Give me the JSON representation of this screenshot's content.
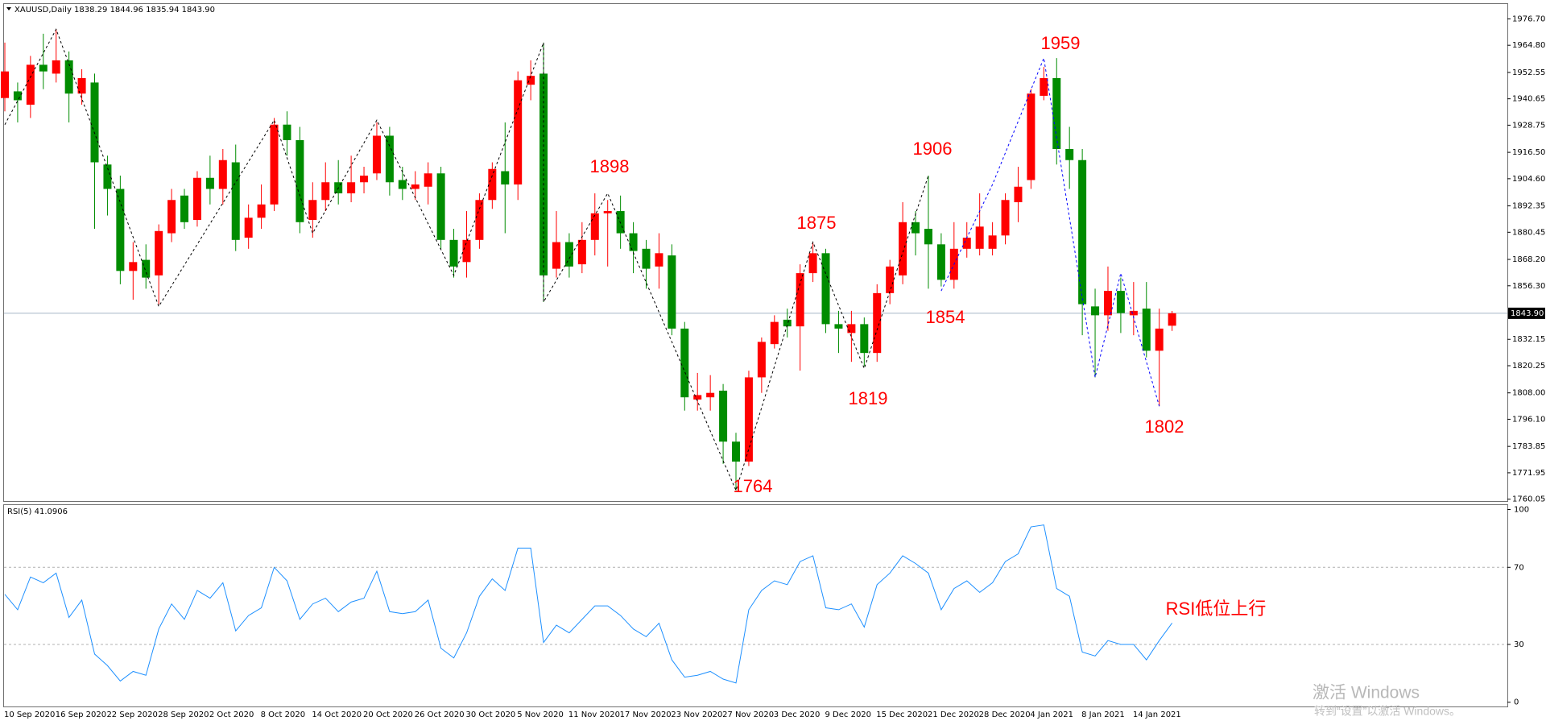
{
  "chart_data": [
    {
      "type": "candlestick",
      "title": "XAUUSD,Daily 1838.29 1844.96 1835.94 1843.90",
      "categories": [
        "10 Sep 2020",
        null,
        null,
        null,
        "16 Sep 2020",
        null,
        null,
        null,
        "22 Sep 2020",
        null,
        null,
        null,
        "28 Sep 2020",
        null,
        null,
        null,
        "2 Oct 2020",
        null,
        null,
        null,
        "8 Oct 2020",
        null,
        null,
        null,
        "14 Oct 2020",
        null,
        null,
        null,
        "20 Oct 2020",
        null,
        null,
        null,
        "26 Oct 2020",
        null,
        null,
        null,
        "30 Oct 2020",
        null,
        null,
        null,
        "5 Nov 2020",
        null,
        null,
        null,
        "11 Nov 2020",
        null,
        null,
        null,
        "17 Nov 2020",
        null,
        null,
        null,
        "23 Nov 2020",
        null,
        null,
        null,
        "27 Nov 2020",
        null,
        null,
        null,
        "3 Dec 2020",
        null,
        null,
        null,
        "9 Dec 2020",
        null,
        null,
        null,
        "15 Dec 2020",
        null,
        null,
        null,
        "21 Dec 2020",
        null,
        null,
        null,
        "28 Dec 2020",
        null,
        null,
        null,
        "4 Jan 2021",
        null,
        null,
        null,
        "8 Jan 2021",
        null,
        null,
        null,
        "14 Jan 2021",
        null,
        null,
        null
      ],
      "open": [
        1941,
        1944,
        1938,
        1956,
        1952,
        1958,
        1943,
        1948,
        1911,
        1900,
        1863,
        1868,
        1861,
        1880,
        1897,
        1886,
        1905,
        1900,
        1912,
        1878,
        1887,
        1893,
        1929,
        1922,
        1886,
        1895,
        1903,
        1898,
        1903,
        1907,
        1924,
        1904,
        1900,
        1901,
        1907,
        1877,
        1867,
        1877,
        1895,
        1908,
        1902,
        1947,
        1952,
        1864,
        1876,
        1866,
        1877,
        1889,
        1890,
        1880,
        1873,
        1865,
        1870,
        1837,
        1805,
        1806,
        1809,
        1786,
        1777,
        1815,
        1830,
        1841,
        1838,
        1862,
        1871,
        1839,
        1835,
        1839,
        1826,
        1853,
        1861,
        1885,
        1882,
        1875,
        1859,
        1873,
        1873,
        1873,
        1879,
        1894,
        1904,
        1942,
        1950,
        1918,
        1913,
        1847,
        1843,
        1854,
        1843,
        1846,
        1827,
        1838.29
      ],
      "high": [
        1966,
        1948,
        1960,
        1970,
        1972,
        1962,
        1954,
        1952,
        1915,
        1906,
        1876,
        1875,
        1884,
        1900,
        1900,
        1908,
        1915,
        1918,
        1920,
        1893,
        1902,
        1932,
        1935,
        1928,
        1903,
        1912,
        1913,
        1915,
        1910,
        1930,
        1928,
        1910,
        1908,
        1912,
        1910,
        1882,
        1890,
        1898,
        1912,
        1930,
        1953,
        1958,
        1966,
        1890,
        1880,
        1885,
        1898,
        1895,
        1897,
        1885,
        1877,
        1880,
        1875,
        1840,
        1817,
        1816,
        1812,
        1790,
        1818,
        1833,
        1843,
        1846,
        1866,
        1876,
        1873,
        1845,
        1845,
        1842,
        1857,
        1868,
        1894,
        1890,
        1906,
        1880,
        1885,
        1885,
        1898,
        1885,
        1898,
        1910,
        1945,
        1955,
        1959,
        1928,
        1918,
        1855,
        1865,
        1860,
        1858,
        1858,
        1846,
        1844.96
      ],
      "low": [
        1935,
        1930,
        1932,
        1945,
        1948,
        1930,
        1938,
        1882,
        1888,
        1857,
        1850,
        1855,
        1848,
        1876,
        1882,
        1883,
        1893,
        1893,
        1872,
        1873,
        1882,
        1890,
        1915,
        1880,
        1878,
        1890,
        1893,
        1894,
        1898,
        1904,
        1897,
        1895,
        1895,
        1893,
        1873,
        1860,
        1860,
        1873,
        1891,
        1880,
        1895,
        1940,
        1849,
        1860,
        1860,
        1862,
        1870,
        1865,
        1873,
        1862,
        1855,
        1855,
        1834,
        1800,
        1800,
        1800,
        1776,
        1764,
        1775,
        1808,
        1828,
        1833,
        1818,
        1858,
        1835,
        1826,
        1822,
        1820,
        1822,
        1848,
        1857,
        1870,
        1855,
        1856,
        1855,
        1869,
        1870,
        1870,
        1875,
        1885,
        1900,
        1940,
        1911,
        1900,
        1834,
        1815,
        1836,
        1835,
        1834,
        1824,
        1802,
        1835.94
      ],
      "close": [
        1953,
        1940,
        1956,
        1953,
        1958,
        1943,
        1950,
        1912,
        1900,
        1863,
        1867,
        1860,
        1881,
        1895,
        1885,
        1905,
        1900,
        1913,
        1877,
        1887,
        1893,
        1929,
        1922,
        1885,
        1895,
        1903,
        1898,
        1903,
        1906,
        1924,
        1903,
        1900,
        1902,
        1907,
        1877,
        1865,
        1877,
        1895,
        1909,
        1902,
        1949,
        1951,
        1861,
        1876,
        1865,
        1877,
        1889,
        1890,
        1880,
        1872,
        1864,
        1871,
        1837,
        1806,
        1807,
        1808,
        1786,
        1777,
        1815,
        1831,
        1840,
        1838,
        1862,
        1871,
        1839,
        1837,
        1839,
        1826,
        1853,
        1865,
        1885,
        1880,
        1875,
        1859,
        1873,
        1878,
        1883,
        1879,
        1895,
        1901,
        1943,
        1950,
        1918,
        1913,
        1848,
        1843,
        1854,
        1844,
        1845,
        1827,
        1837,
        1843.9
      ],
      "up_color": "#ff0000",
      "down_color": "#008c00",
      "ylim": [
        1759.2,
        1983.4
      ],
      "yticks": [
        {
          "value": 1976.7,
          "label": "1976.70"
        },
        {
          "value": 1964.8,
          "label": "1964.80"
        },
        1952.55,
        1940.65,
        1928.75,
        {
          "value": 1916.5,
          "label": "1916.50"
        },
        {
          "value": 1904.6,
          "label": "1904.60"
        },
        1892.35,
        1880.45,
        {
          "value": 1868.2,
          "label": "1868.20"
        },
        {
          "value": 1856.3,
          "label": "1856.30"
        },
        1832.15,
        1820.25,
        {
          "value": 1808,
          "label": "1808.00"
        },
        {
          "value": 1796.1,
          "label": "1796.10"
        },
        1783.85,
        1771.95,
        1760.05
      ],
      "current_price": {
        "value": 1843.9,
        "label": "1843.90"
      },
      "grid": false,
      "zigzag": [
        {
          "color": "#000000",
          "x": [
            0,
            4,
            12,
            21,
            24,
            29,
            35,
            42,
            42,
            47,
            57,
            63,
            67,
            72
          ],
          "values": [
            1929,
            1972,
            1847,
            1931,
            1880,
            1931,
            1861,
            1966,
            1849,
            1898,
            1764,
            1876,
            1819,
            1906
          ]
        },
        {
          "color": "#0000ff",
          "x": [
            73,
            77,
            81,
            85,
            87,
            90
          ],
          "values": [
            1854,
            1902,
            1959,
            1815,
            1862,
            1802
          ]
        }
      ],
      "annotations": [
        "1959",
        "1906",
        "1898",
        "1875",
        "1854",
        "1819",
        "1764",
        "1802"
      ]
    },
    {
      "type": "line",
      "title": "RSI(5) 41.0906",
      "color": "#1e90ff",
      "values": [
        56,
        48,
        65,
        62,
        67,
        44,
        53,
        25,
        19,
        11,
        16,
        14,
        38,
        51,
        43,
        58,
        54,
        62,
        37,
        45,
        49,
        70,
        63,
        43,
        51,
        54,
        47,
        52,
        54,
        68,
        47,
        46,
        47,
        53,
        28,
        23,
        36,
        55,
        64,
        58,
        80,
        80,
        31,
        40,
        36,
        43,
        50,
        50,
        45,
        38,
        34,
        41,
        22,
        13,
        14,
        16,
        12,
        10,
        48,
        58,
        63,
        61,
        73,
        76,
        49,
        48,
        51,
        39,
        61,
        67,
        76,
        72,
        67,
        48,
        59,
        63,
        57,
        62,
        73,
        77,
        91,
        92,
        59,
        55,
        26,
        24,
        32,
        30,
        30,
        22,
        32,
        41.0906
      ],
      "ylim": [
        -2.2,
        102.3
      ],
      "yticks": [
        100,
        70,
        30,
        0
      ],
      "annotations": [
        "RSI低位上行"
      ]
    }
  ],
  "watermark": {
    "title": "激活 Windows",
    "subtitle": "转到“设置”以激活 Windows。"
  }
}
